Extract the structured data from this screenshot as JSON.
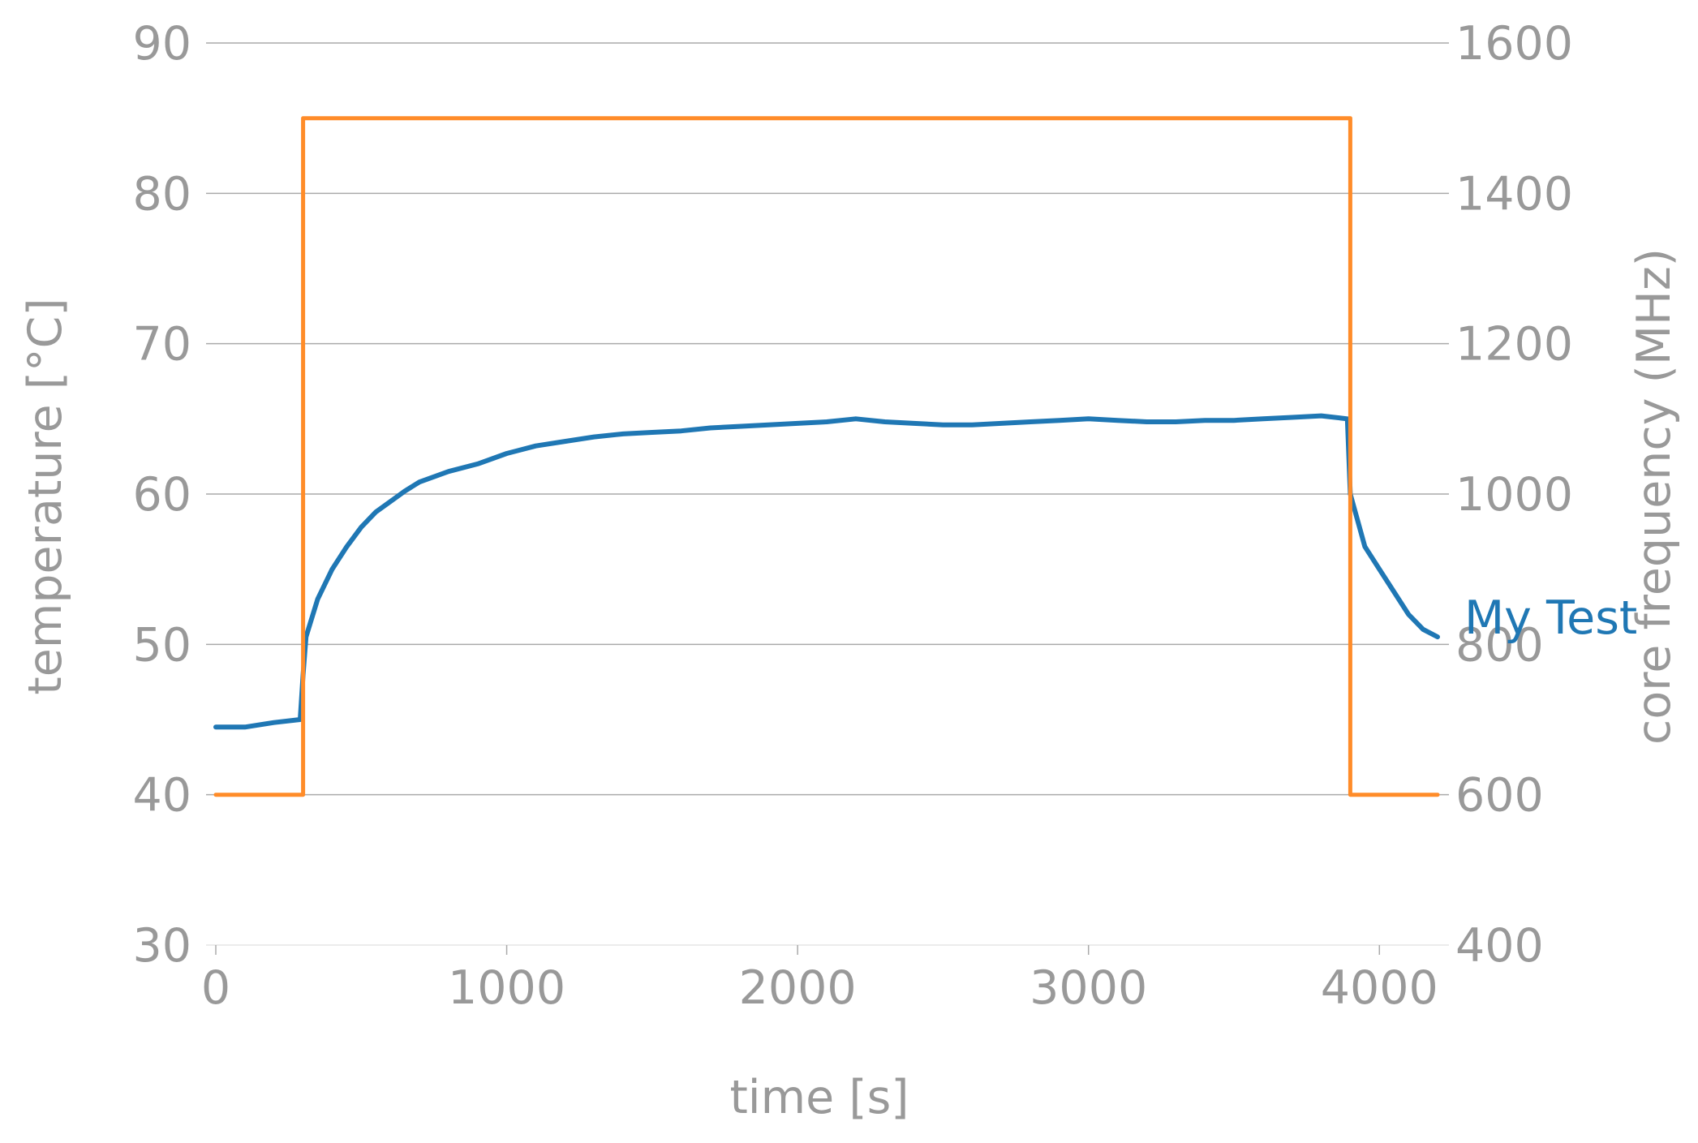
{
  "chart_data": {
    "type": "line",
    "title": "",
    "xlabel": "time [s]",
    "ylabel": "temperature [°C]",
    "y2label": "core frequency (MHz)",
    "xlim": [
      0,
      4200
    ],
    "ylim": [
      30,
      90
    ],
    "y2lim": [
      400,
      1600
    ],
    "xticks": [
      0,
      1000,
      2000,
      3000,
      4000
    ],
    "yticks": [
      30,
      40,
      50,
      60,
      70,
      80,
      90
    ],
    "y2ticks": [
      400,
      600,
      800,
      1000,
      1200,
      1400,
      1600
    ],
    "grid": "horizontal",
    "series": [
      {
        "name": "My Test",
        "axis": "left",
        "color": "#1f77b4",
        "x": [
          0,
          100,
          200,
          290,
          300,
          310,
          350,
          400,
          450,
          500,
          550,
          600,
          650,
          700,
          800,
          900,
          1000,
          1100,
          1200,
          1300,
          1400,
          1500,
          1600,
          1700,
          1800,
          1900,
          2000,
          2100,
          2200,
          2300,
          2400,
          2500,
          2600,
          2700,
          2800,
          2900,
          3000,
          3100,
          3200,
          3300,
          3400,
          3500,
          3600,
          3700,
          3800,
          3890,
          3900,
          3950,
          4000,
          4050,
          4100,
          4150,
          4200
        ],
        "values": [
          44.5,
          44.5,
          44.8,
          45.0,
          48.0,
          50.5,
          53.0,
          55.0,
          56.5,
          57.8,
          58.8,
          59.5,
          60.2,
          60.8,
          61.5,
          62.0,
          62.7,
          63.2,
          63.5,
          63.8,
          64.0,
          64.1,
          64.2,
          64.4,
          64.5,
          64.6,
          64.7,
          64.8,
          65.0,
          64.8,
          64.7,
          64.6,
          64.6,
          64.7,
          64.8,
          64.9,
          65.0,
          64.9,
          64.8,
          64.8,
          64.9,
          64.9,
          65.0,
          65.1,
          65.2,
          65.0,
          60.0,
          56.5,
          55.0,
          53.5,
          52.0,
          51.0,
          50.5
        ]
      },
      {
        "name": "",
        "axis": "right",
        "color": "#ff8c29",
        "x": [
          0,
          300,
          300,
          3900,
          3900,
          4200
        ],
        "values": [
          600,
          600,
          1500,
          1500,
          600,
          600
        ]
      }
    ],
    "annotations": [
      {
        "text": "My Test",
        "series": 0,
        "position": "right-end"
      }
    ]
  }
}
